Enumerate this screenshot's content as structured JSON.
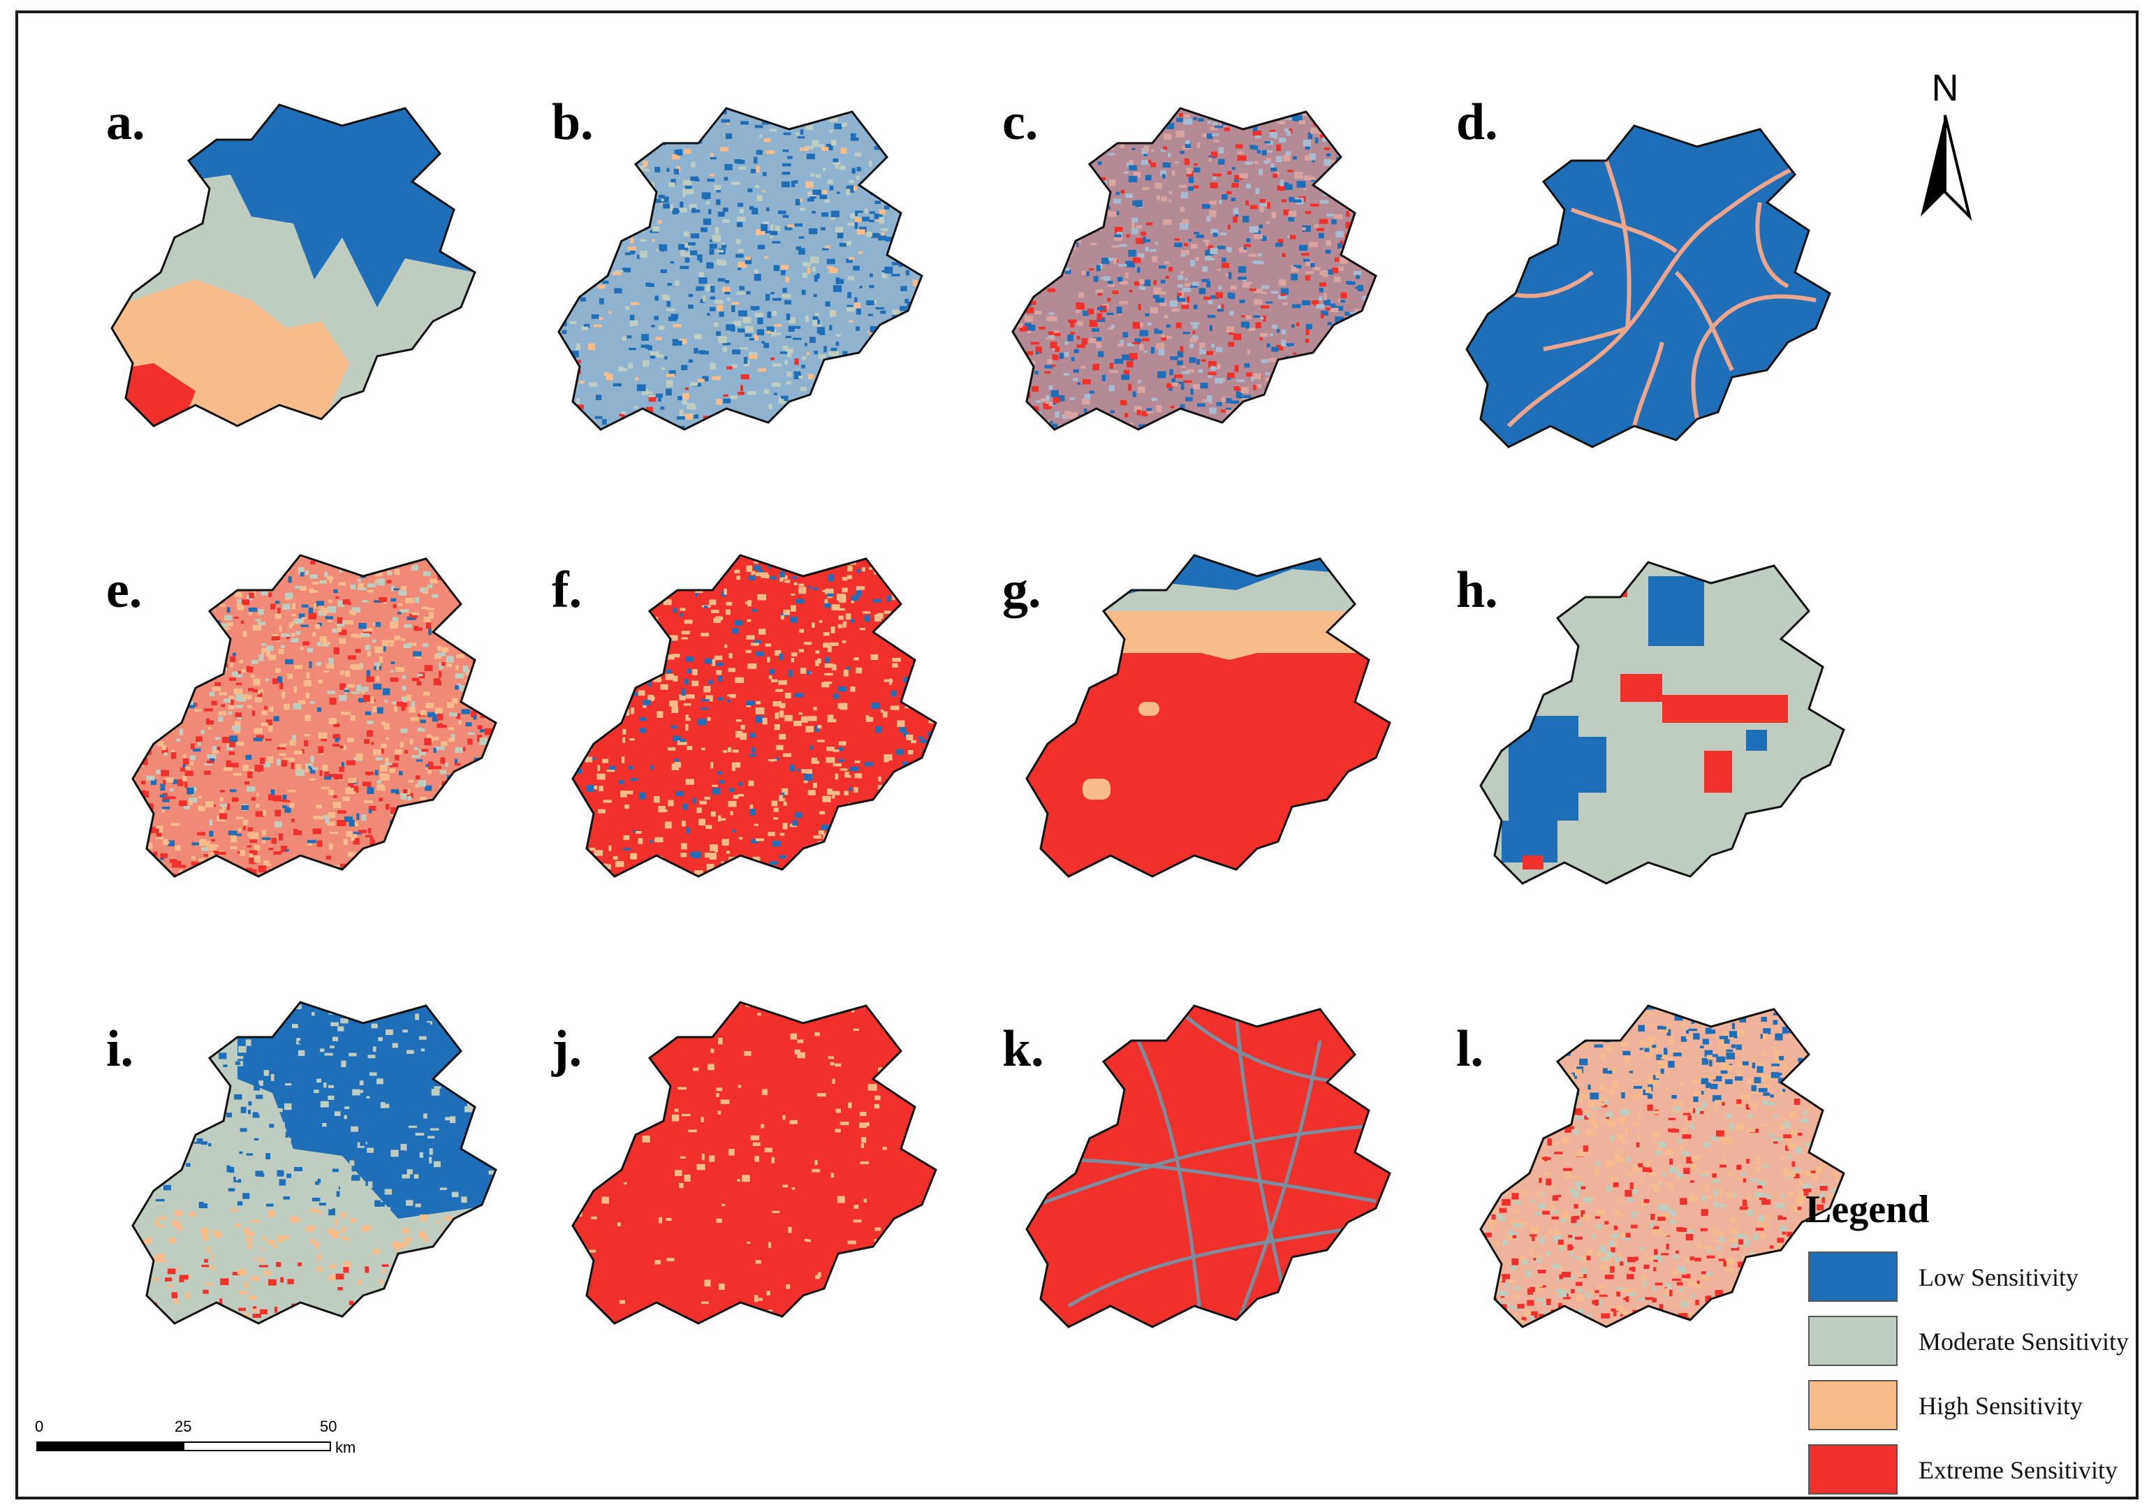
{
  "panels": [
    {
      "label": "a.",
      "pattern": "zonal-a"
    },
    {
      "label": "b.",
      "pattern": "speckle-blue"
    },
    {
      "label": "c.",
      "pattern": "speckle-mixed"
    },
    {
      "label": "d.",
      "pattern": "rivers"
    },
    {
      "label": "e.",
      "pattern": "speckle-red"
    },
    {
      "label": "f.",
      "pattern": "red-blue-spots"
    },
    {
      "label": "g.",
      "pattern": "bands"
    },
    {
      "label": "h.",
      "pattern": "blocky"
    },
    {
      "label": "i.",
      "pattern": "blue-green"
    },
    {
      "label": "j.",
      "pattern": "solid-red"
    },
    {
      "label": "k.",
      "pattern": "roads"
    },
    {
      "label": "l.",
      "pattern": "composite"
    }
  ],
  "north_arrow": {
    "letter": "N"
  },
  "legend": {
    "title": "Legend",
    "items": [
      {
        "label": "Low Sensitivity",
        "color": "#1f6fb8"
      },
      {
        "label": "Moderate Sensitivity",
        "color": "#bfcdc0"
      },
      {
        "label": "High Sensitivity",
        "color": "#f8bb8a"
      },
      {
        "label": "Extreme Sensitivity",
        "color": "#f0302a"
      }
    ]
  },
  "scale_bar": {
    "ticks": [
      "0",
      "25",
      "50"
    ],
    "unit": "km"
  },
  "colors": {
    "low": "#1f6fb8",
    "moderate": "#bfcdc0",
    "high": "#f8bb8a",
    "extreme": "#f0302a",
    "road": "#7b8ea0",
    "outline": "#111111"
  }
}
